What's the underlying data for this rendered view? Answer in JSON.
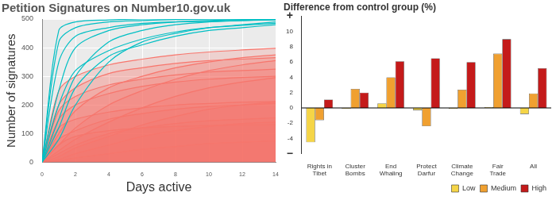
{
  "chart_data": [
    {
      "type": "line",
      "title": "Petition Signatures on Number10.gov.uk",
      "x_label": "Days active",
      "y_label": "Number of signatures",
      "x": [
        0,
        1,
        2,
        4,
        6,
        8,
        10,
        12,
        14
      ],
      "xlim": [
        0,
        14
      ],
      "xticks": [
        0,
        2,
        4,
        6,
        8,
        10,
        12,
        14
      ],
      "ylim": [
        0,
        500
      ],
      "yticks": [
        0,
        100,
        200,
        300,
        400,
        500
      ],
      "grid": true,
      "marker": "none",
      "series": [
        {
          "color": "#F8766D",
          "values": [
            0,
            100,
            180,
            260,
            300,
            330,
            350,
            365,
            375
          ]
        },
        {
          "color": "#F8766D",
          "values": [
            0,
            60,
            120,
            200,
            250,
            290,
            320,
            340,
            355
          ]
        },
        {
          "color": "#F8766D",
          "values": [
            0,
            200,
            260,
            310,
            330,
            345,
            355,
            360,
            365
          ]
        },
        {
          "color": "#F8766D",
          "values": [
            0,
            40,
            80,
            140,
            190,
            230,
            260,
            280,
            295
          ]
        },
        {
          "color": "#F8766D",
          "values": [
            0,
            150,
            200,
            240,
            265,
            280,
            290,
            296,
            300
          ]
        },
        {
          "color": "#F8766D",
          "values": [
            0,
            20,
            50,
            90,
            130,
            160,
            185,
            200,
            210
          ]
        },
        {
          "color": "#F8766D",
          "values": [
            0,
            80,
            110,
            150,
            170,
            185,
            195,
            200,
            205
          ]
        },
        {
          "color": "#F8766D",
          "values": [
            0,
            250,
            300,
            340,
            360,
            375,
            385,
            392,
            398
          ]
        },
        {
          "color": "#F8766D",
          "values": [
            0,
            10,
            30,
            60,
            90,
            110,
            125,
            135,
            140
          ]
        },
        {
          "color": "#F8766D",
          "values": [
            0,
            120,
            150,
            175,
            190,
            200,
            205,
            210,
            212
          ]
        },
        {
          "color": "#F8766D",
          "values": [
            0,
            30,
            60,
            100,
            120,
            135,
            145,
            150,
            155
          ]
        },
        {
          "color": "#F8766D",
          "values": [
            0,
            5,
            15,
            30,
            45,
            55,
            65,
            70,
            75
          ]
        },
        {
          "color": "#F8766D",
          "values": [
            0,
            180,
            230,
            270,
            290,
            305,
            315,
            320,
            325
          ]
        },
        {
          "color": "#F8766D",
          "values": [
            0,
            60,
            90,
            110,
            120,
            125,
            128,
            130,
            131
          ]
        },
        {
          "color": "#00BFC4",
          "values": [
            0,
            420,
            470,
            490,
            495,
            498,
            500,
            500,
            500
          ]
        },
        {
          "color": "#00BFC4",
          "values": [
            0,
            250,
            400,
            460,
            480,
            490,
            495,
            498,
            500
          ]
        },
        {
          "color": "#00BFC4",
          "values": [
            0,
            150,
            300,
            420,
            460,
            480,
            490,
            495,
            498
          ]
        },
        {
          "color": "#00BFC4",
          "values": [
            0,
            350,
            440,
            470,
            485,
            490,
            492,
            495,
            497
          ]
        },
        {
          "color": "#00BFC4",
          "values": [
            0,
            80,
            200,
            350,
            420,
            450,
            470,
            480,
            490
          ]
        },
        {
          "color": "#00BFC4",
          "values": [
            0,
            460,
            490,
            497,
            500,
            500,
            500,
            500,
            500
          ]
        },
        {
          "color": "#00BFC4",
          "values": [
            0,
            200,
            320,
            390,
            430,
            455,
            470,
            478,
            485
          ]
        },
        {
          "color": "#00BFC4",
          "values": [
            0,
            120,
            260,
            370,
            410,
            440,
            460,
            470,
            480
          ]
        }
      ]
    },
    {
      "type": "bar",
      "title": "Difference from control group (%)",
      "categories": [
        "Rights in Tibet",
        "Cluster Bombs",
        "End Whaling",
        "Protect Darfur",
        "Climate Change",
        "Fair Trade",
        "All"
      ],
      "series": [
        {
          "name": "Low",
          "color": "#F5D547",
          "values": [
            -4.5,
            -0.1,
            0.6,
            -0.3,
            -0.1,
            0.1,
            -0.8
          ]
        },
        {
          "name": "Medium",
          "color": "#F0A030",
          "values": [
            -1.6,
            2.5,
            4.0,
            -2.4,
            2.4,
            7.1,
            1.9
          ]
        },
        {
          "name": "High",
          "color": "#C41A1A",
          "values": [
            1.1,
            2.0,
            6.1,
            6.5,
            6.0,
            9.0,
            5.2
          ]
        }
      ],
      "ylim": [
        -6,
        12
      ],
      "yticks": [
        {
          "value": -6,
          "label": "−"
        },
        -4,
        -2,
        0,
        2,
        4,
        6,
        8,
        10,
        {
          "value": 12,
          "label": "+"
        }
      ],
      "grid": false,
      "legend": "lower right"
    }
  ]
}
